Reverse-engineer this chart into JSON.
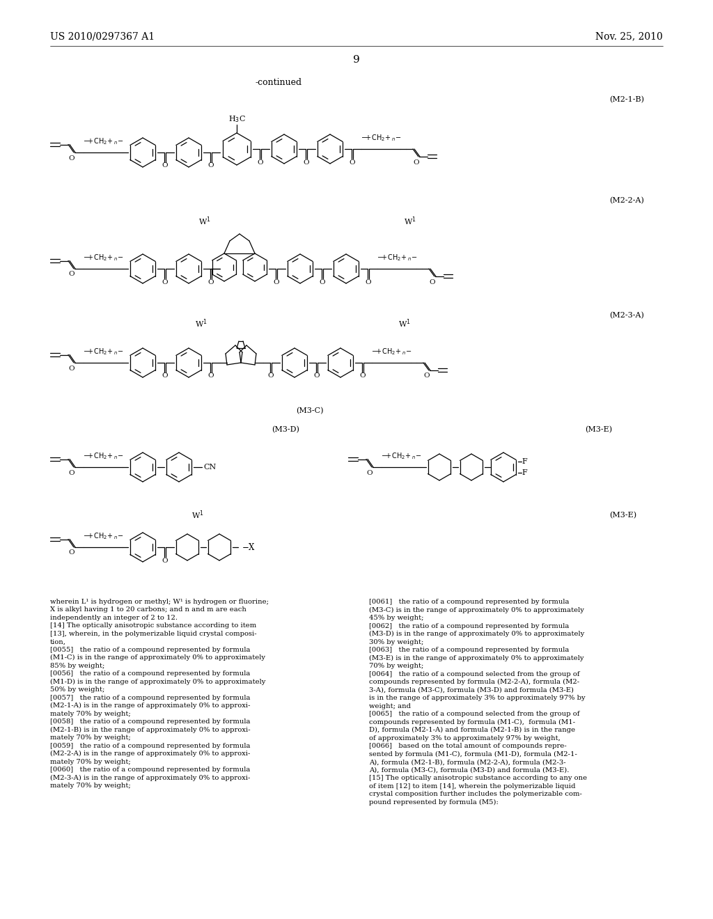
{
  "header_left": "US 2010/0297367 A1",
  "header_right": "Nov. 25, 2010",
  "page_num": "9",
  "continued": "-continued",
  "bg": "#ffffff",
  "tc": "#000000",
  "body_left": "wherein L¹ is hydrogen or methyl; W¹ is hydrogen or fluorine;\nX is alkyl having 1 to 20 carbons; and n and m are each\nindependently an integer of 2 to 12.\n[14] The optically anisotropic substance according to item\n[13], wherein, in the polymerizable liquid crystal composi-\ntion,\n[0055]   the ratio of a compound represented by formula\n(M1-C) is in the range of approximately 0% to approximately\n85% by weight;\n[0056]   the ratio of a compound represented by formula\n(M1-D) is in the range of approximately 0% to approximately\n50% by weight;\n[0057]   the ratio of a compound represented by formula\n(M2-1-A) is in the range of approximately 0% to approxi-\nmately 70% by weight;\n[0058]   the ratio of a compound represented by formula\n(M2-1-B) is in the range of approximately 0% to approxi-\nmately 70% by weight;\n[0059]   the ratio of a compound represented by formula\n(M2-2-A) is in the range of approximately 0% to approxi-\nmately 70% by weight;\n[0060]   the ratio of a compound represented by formula\n(M2-3-A) is in the range of approximately 0% to approxi-\nmately 70% by weight;",
  "body_right": "45% by weight;\n[0062]   the ratio of a compound represented by formula\n(M3-D) is in the range of approximately 0% to approximately\n30% by weight;\n[0063]   the ratio of a compound represented by formula\n(M3-E) is in the range of approximately 0% to approximately\n70% by weight;\n[0064]   the ratio of a compound selected from the group of\ncompounds represented by formula (M2-2-A), formula (M2-\n3-A), formula (M3-C), formula (M3-D) and formula (M3-E)\nis in the range of approximately 3% to approximately 97% by\nweight; and\n[0065]   the ratio of a compound selected from the group of\ncompounds represented by formula (M1-C),  formula (M1-\nD), formula (M2-1-A) and formula (M2-1-B) is in the range\nof approximately 3% to approximately 97% by weight,\n[0066]   based on the total amount of compounds repre-\nsented by formula (M1-C), formula (M1-D), formula (M2-1-\nA), formula (M2-1-B), formula (M2-2-A), formula (M2-3-\nA), formula (M3-C), formula (M3-D) and formula (M3-E).\n[15] The optically anisotropic substance according to any one\nof item [12] to item [14], wherein the polymerizable liquid\ncrystal composition further includes the polymerizable com-\npound represented by formula (M5):",
  "body_right_prefix": "[0061]   the ratio of a compound represented by formula\n(M3-C) is in the range of approximately 0% to approximately"
}
